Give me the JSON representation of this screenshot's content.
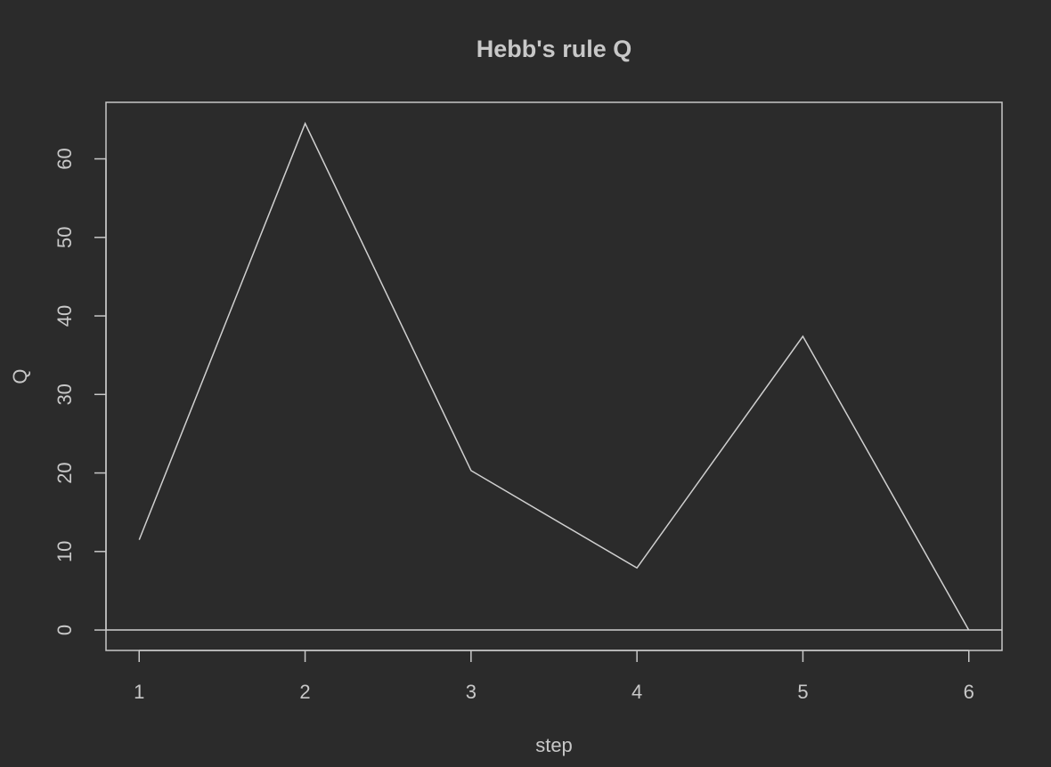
{
  "chart_data": {
    "type": "line",
    "title": "Hebb's rule Q",
    "xlabel": "step",
    "ylabel": "Q",
    "x": [
      1,
      2,
      3,
      4,
      5,
      6
    ],
    "y": [
      11.5,
      64.5,
      20.3,
      7.9,
      37.4,
      0.0
    ],
    "xticks": [
      1,
      2,
      3,
      4,
      5,
      6
    ],
    "yticks": [
      0,
      10,
      20,
      30,
      40,
      50,
      60
    ],
    "xlim": [
      0.8,
      6.2
    ],
    "ylim": [
      -2.6,
      67.2
    ],
    "reference_line_y": 0,
    "grid": false,
    "legend": "none"
  },
  "colors": {
    "background": "#2b2b2b",
    "foreground": "#c8c8c8",
    "line": "#d0d0d0"
  }
}
